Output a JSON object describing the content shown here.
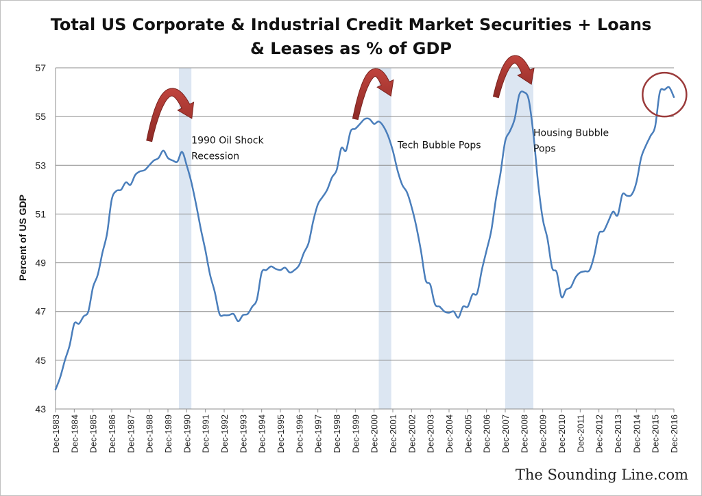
{
  "chart_data": {
    "type": "line",
    "title_lines": [
      "Total US Corporate & Industrial Credit Market Securities + Loans",
      "& Leases as % of GDP"
    ],
    "ylabel": "Percent of US GDP",
    "xlabel": "",
    "ylim": [
      43,
      57
    ],
    "yticks": [
      43,
      45,
      47,
      49,
      51,
      53,
      55,
      57
    ],
    "xlim": [
      "1983-12",
      "2016-12"
    ],
    "x_tick_labels": [
      "Dec-1983",
      "Dec-1984",
      "Dec-1985",
      "Dec-1986",
      "Dec-1987",
      "Dec-1988",
      "Dec-1989",
      "Dec-1990",
      "Dec-1991",
      "Dec-1992",
      "Dec-1993",
      "Dec-1994",
      "Dec-1995",
      "Dec-1996",
      "Dec-1997",
      "Dec-1998",
      "Dec-1999",
      "Dec-2000",
      "Dec-2001",
      "Dec-2002",
      "Dec-2003",
      "Dec-2004",
      "Dec-2005",
      "Dec-2006",
      "Dec-2007",
      "Dec-2008",
      "Dec-2009",
      "Dec-2010",
      "Dec-2011",
      "Dec-2012",
      "Dec-2013",
      "Dec-2014",
      "Dec-2015",
      "Dec-2016"
    ],
    "grid": "horizontal",
    "line_color": "#4a7ebb",
    "recession_color": "#dce6f2",
    "annotation_color": "#a8322d",
    "series": [
      {
        "points": [
          [
            "1983-12",
            43.8
          ],
          [
            "1984-03",
            44.3
          ],
          [
            "1984-06",
            45.0
          ],
          [
            "1984-09",
            45.6
          ],
          [
            "1984-12",
            46.5
          ],
          [
            "1985-03",
            46.5
          ],
          [
            "1985-06",
            46.8
          ],
          [
            "1985-09",
            47.0
          ],
          [
            "1985-12",
            48.0
          ],
          [
            "1986-03",
            48.5
          ],
          [
            "1986-06",
            49.4
          ],
          [
            "1986-09",
            50.2
          ],
          [
            "1986-12",
            51.6
          ],
          [
            "1987-03",
            51.95
          ],
          [
            "1987-06",
            52.0
          ],
          [
            "1987-09",
            52.3
          ],
          [
            "1987-12",
            52.2
          ],
          [
            "1988-03",
            52.6
          ],
          [
            "1988-06",
            52.75
          ],
          [
            "1988-09",
            52.8
          ],
          [
            "1988-12",
            53.0
          ],
          [
            "1989-03",
            53.2
          ],
          [
            "1989-06",
            53.3
          ],
          [
            "1989-09",
            53.6
          ],
          [
            "1989-12",
            53.3
          ],
          [
            "1990-03",
            53.2
          ],
          [
            "1990-06",
            53.15
          ],
          [
            "1990-09",
            53.55
          ],
          [
            "1990-12",
            53.0
          ],
          [
            "1991-03",
            52.3
          ],
          [
            "1991-06",
            51.4
          ],
          [
            "1991-09",
            50.4
          ],
          [
            "1991-12",
            49.5
          ],
          [
            "1992-03",
            48.5
          ],
          [
            "1992-06",
            47.8
          ],
          [
            "1992-09",
            46.9
          ],
          [
            "1992-12",
            46.85
          ],
          [
            "1993-03",
            46.85
          ],
          [
            "1993-06",
            46.9
          ],
          [
            "1993-09",
            46.6
          ],
          [
            "1993-12",
            46.85
          ],
          [
            "1994-03",
            46.9
          ],
          [
            "1994-06",
            47.2
          ],
          [
            "1994-09",
            47.5
          ],
          [
            "1994-12",
            48.6
          ],
          [
            "1995-03",
            48.7
          ],
          [
            "1995-06",
            48.85
          ],
          [
            "1995-09",
            48.75
          ],
          [
            "1995-12",
            48.7
          ],
          [
            "1996-03",
            48.8
          ],
          [
            "1996-06",
            48.6
          ],
          [
            "1996-09",
            48.7
          ],
          [
            "1996-12",
            48.9
          ],
          [
            "1997-03",
            49.4
          ],
          [
            "1997-06",
            49.8
          ],
          [
            "1997-09",
            50.7
          ],
          [
            "1997-12",
            51.4
          ],
          [
            "1998-03",
            51.7
          ],
          [
            "1998-06",
            52.0
          ],
          [
            "1998-09",
            52.5
          ],
          [
            "1998-12",
            52.8
          ],
          [
            "1999-03",
            53.7
          ],
          [
            "1999-06",
            53.6
          ],
          [
            "1999-09",
            54.4
          ],
          [
            "1999-12",
            54.5
          ],
          [
            "2000-03",
            54.7
          ],
          [
            "2000-06",
            54.9
          ],
          [
            "2000-09",
            54.9
          ],
          [
            "2000-12",
            54.7
          ],
          [
            "2001-03",
            54.8
          ],
          [
            "2001-06",
            54.6
          ],
          [
            "2001-09",
            54.2
          ],
          [
            "2001-12",
            53.6
          ],
          [
            "2002-03",
            52.8
          ],
          [
            "2002-06",
            52.2
          ],
          [
            "2002-09",
            51.9
          ],
          [
            "2002-12",
            51.3
          ],
          [
            "2003-03",
            50.5
          ],
          [
            "2003-06",
            49.5
          ],
          [
            "2003-09",
            48.3
          ],
          [
            "2003-12",
            48.1
          ],
          [
            "2004-03",
            47.3
          ],
          [
            "2004-06",
            47.2
          ],
          [
            "2004-09",
            47.0
          ],
          [
            "2004-12",
            46.95
          ],
          [
            "2005-03",
            47.0
          ],
          [
            "2005-06",
            46.75
          ],
          [
            "2005-09",
            47.2
          ],
          [
            "2005-12",
            47.2
          ],
          [
            "2006-03",
            47.7
          ],
          [
            "2006-06",
            47.75
          ],
          [
            "2006-09",
            48.7
          ],
          [
            "2006-12",
            49.5
          ],
          [
            "2007-03",
            50.3
          ],
          [
            "2007-06",
            51.6
          ],
          [
            "2007-09",
            52.7
          ],
          [
            "2007-12",
            54.0
          ],
          [
            "2008-03",
            54.4
          ],
          [
            "2008-06",
            54.9
          ],
          [
            "2008-09",
            55.9
          ],
          [
            "2008-12",
            56.0
          ],
          [
            "2009-03",
            55.7
          ],
          [
            "2009-06",
            54.3
          ],
          [
            "2009-09",
            52.3
          ],
          [
            "2009-12",
            50.8
          ],
          [
            "2010-03",
            50.0
          ],
          [
            "2010-06",
            48.8
          ],
          [
            "2010-09",
            48.6
          ],
          [
            "2010-12",
            47.6
          ],
          [
            "2011-03",
            47.9
          ],
          [
            "2011-06",
            48.0
          ],
          [
            "2011-09",
            48.4
          ],
          [
            "2011-12",
            48.6
          ],
          [
            "2012-03",
            48.65
          ],
          [
            "2012-06",
            48.7
          ],
          [
            "2012-09",
            49.3
          ],
          [
            "2012-12",
            50.2
          ],
          [
            "2013-03",
            50.3
          ],
          [
            "2013-06",
            50.7
          ],
          [
            "2013-09",
            51.1
          ],
          [
            "2013-12",
            50.95
          ],
          [
            "2014-03",
            51.8
          ],
          [
            "2014-06",
            51.75
          ],
          [
            "2014-09",
            51.8
          ],
          [
            "2014-12",
            52.3
          ],
          [
            "2015-03",
            53.3
          ],
          [
            "2015-06",
            53.8
          ],
          [
            "2015-09",
            54.2
          ],
          [
            "2015-12",
            54.6
          ],
          [
            "2016-03",
            56.0
          ],
          [
            "2016-06",
            56.1
          ],
          [
            "2016-09",
            56.2
          ],
          [
            "2016-12",
            55.8
          ]
        ]
      }
    ],
    "recessions": [
      {
        "start": "1990-07",
        "end": "1991-03"
      },
      {
        "start": "2001-03",
        "end": "2001-11"
      },
      {
        "start": "2007-12",
        "end": "2009-06"
      }
    ],
    "annotations": [
      {
        "text_lines": [
          "1990 Oil Shock",
          "Recession"
        ],
        "x": "1991-03",
        "y": 53.9
      },
      {
        "text_lines": [
          "Tech Bubble Pops"
        ],
        "x": "2002-03",
        "y": 53.7
      },
      {
        "text_lines": [
          "Housing Bubble",
          "Pops"
        ],
        "x": "2009-06",
        "y": 54.2
      }
    ],
    "peak_arrows": [
      {
        "from": [
          "1988-12",
          54.0
        ],
        "apex": [
          "1990-02",
          56.0
        ],
        "to": [
          "1991-06",
          54.3
        ]
      },
      {
        "from": [
          "1999-12",
          54.9
        ],
        "apex": [
          "2000-12",
          56.8
        ],
        "to": [
          "2001-12",
          55.4
        ]
      },
      {
        "from": [
          "2007-06",
          55.8
        ],
        "apex": [
          "2008-06",
          57.35
        ],
        "to": [
          "2009-06",
          55.9
        ]
      }
    ],
    "highlight_circle": {
      "x": "2016-06",
      "y": 55.9
    }
  },
  "credit": "The Sounding Line.com"
}
